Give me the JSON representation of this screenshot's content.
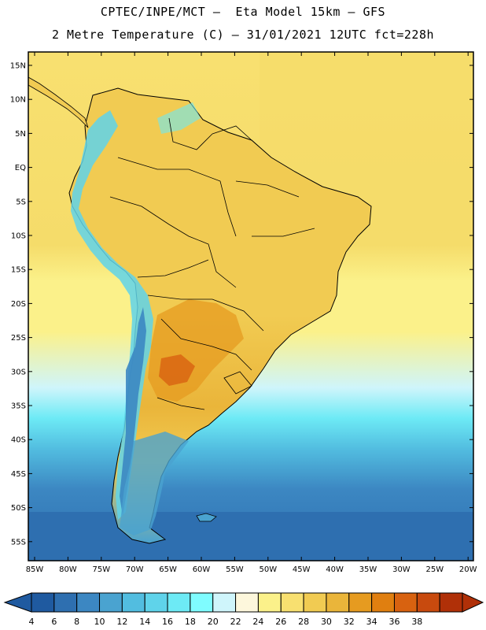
{
  "header": {
    "line1": "CPTEC/INPE/MCT –  Eta Model 15km – GFS",
    "line2": "2 Metre Temperature (C) – 31/01/2021 12UTC fct=228h"
  },
  "map": {
    "lat_ticks": [
      "15N",
      "10N",
      "5N",
      "EQ",
      "5S",
      "10S",
      "15S",
      "20S",
      "25S",
      "30S",
      "35S",
      "40S",
      "45S",
      "50S",
      "55S"
    ],
    "lon_ticks": [
      "85W",
      "80W",
      "75W",
      "70W",
      "65W",
      "60W",
      "55W",
      "50W",
      "45W",
      "40W",
      "35W",
      "30W",
      "25W",
      "20W"
    ],
    "lon_range": [
      -85,
      -20
    ],
    "lat_range": [
      -57,
      16
    ]
  },
  "legend": {
    "labels": [
      "4",
      "6",
      "8",
      "10",
      "12",
      "14",
      "16",
      "18",
      "20",
      "22",
      "24",
      "26",
      "28",
      "30",
      "32",
      "34",
      "36",
      "38"
    ],
    "colors": [
      "#1f5aa0",
      "#2e6fb0",
      "#3c87c2",
      "#4aa3d0",
      "#52bde0",
      "#5fd3ea",
      "#6deaf5",
      "#7ffcff",
      "#cff5fb",
      "#fdf7dc",
      "#fbf18a",
      "#f8e070",
      "#f1cb52",
      "#eab53a",
      "#e69b20",
      "#e07f10",
      "#d86210",
      "#c84a0e",
      "#b03008"
    ]
  }
}
